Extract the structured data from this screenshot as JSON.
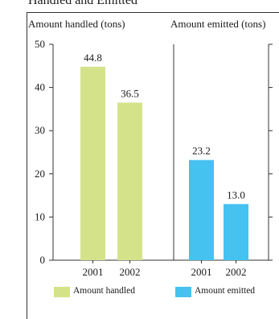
{
  "chart_data": {
    "title": "Handled and Emitted",
    "legend": {
      "placement": "bottom"
    },
    "charts": [
      {
        "type": "bar",
        "ylabel": "Amount handled (tons)",
        "categories": [
          "2001",
          "2002"
        ],
        "series": [
          {
            "name": "Amount handled",
            "values": [
              44.8,
              36.5
            ]
          }
        ],
        "ylim": [
          0,
          50
        ],
        "yticks": [
          "0",
          "10",
          "20",
          "30",
          "40",
          "50"
        ],
        "color": "#d4e38a",
        "value_labels": [
          "44.8",
          "36.5"
        ],
        "grid": false
      },
      {
        "type": "bar",
        "ylabel": "Amount emitted (tons)",
        "categories": [
          "2001",
          "2002"
        ],
        "series": [
          {
            "name": "Amount emitted",
            "values": [
              23.2,
              13.0
            ]
          }
        ],
        "ylim": [
          0,
          50
        ],
        "color": "#45c2f0",
        "value_labels": [
          "23.2",
          "13.0"
        ],
        "grid": false
      }
    ]
  }
}
